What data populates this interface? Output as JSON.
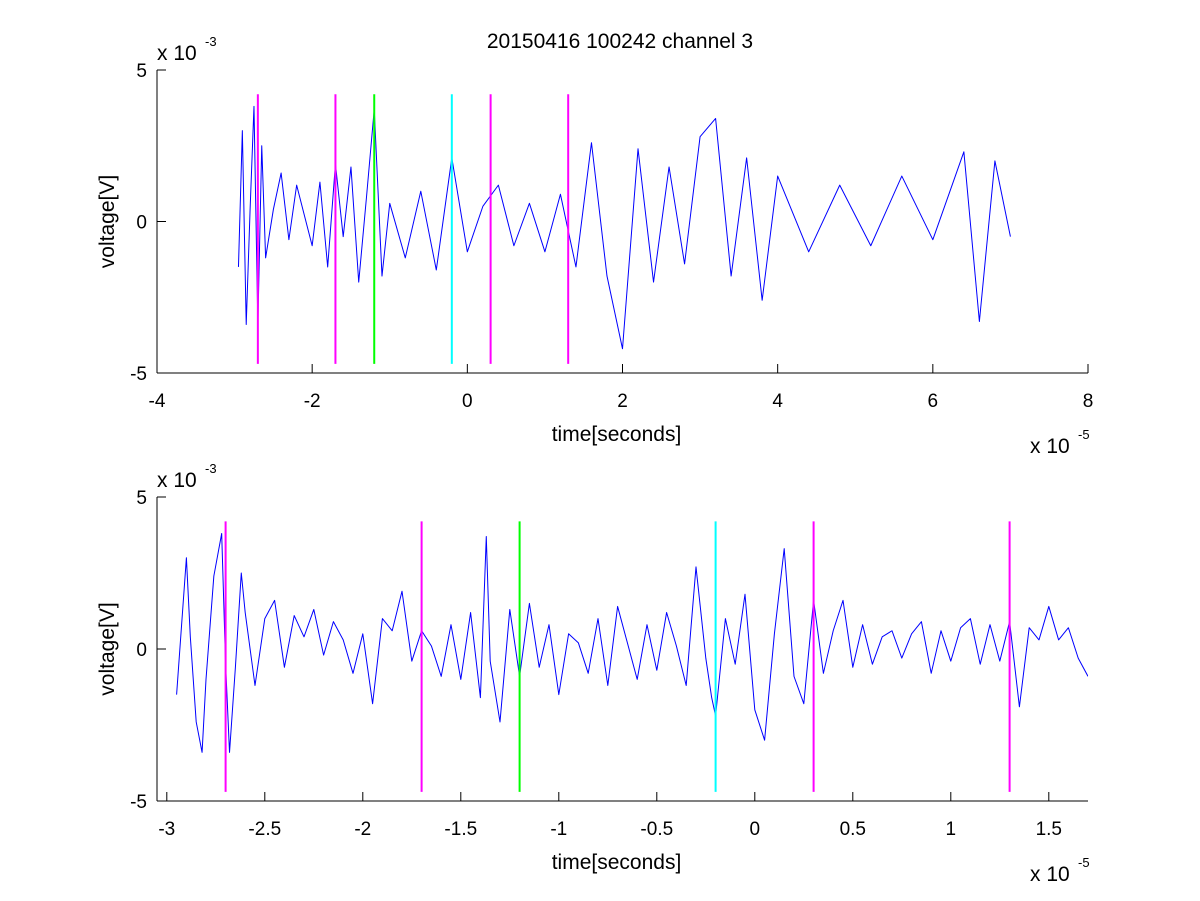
{
  "figure": {
    "title": "20150416 100242 channel 3"
  },
  "chart_data": [
    {
      "type": "line",
      "xlabel": "time[seconds]",
      "ylabel": "voltage[V]",
      "x_multiplier": "x 10",
      "x_exponent": "-5",
      "y_multiplier": "x 10",
      "y_exponent": "-3",
      "xlim": [
        -4,
        8
      ],
      "ylim": [
        -5,
        5
      ],
      "xticks": [
        -4,
        -2,
        0,
        2,
        4,
        6,
        8
      ],
      "xtick_labels": [
        "-4",
        "-2",
        "0",
        "2",
        "4",
        "6",
        "8"
      ],
      "yticks": [
        -5,
        0,
        5
      ],
      "ytick_labels": [
        "-5",
        "0",
        "5"
      ],
      "series": [
        {
          "color": "#0000ff",
          "x_range": [
            -2.95,
            7.0
          ],
          "x": [
            -2.95,
            -2.9,
            -2.85,
            -2.8,
            -2.75,
            -2.7,
            -2.65,
            -2.6,
            -2.5,
            -2.4,
            -2.3,
            -2.2,
            -2.1,
            -2.0,
            -1.9,
            -1.8,
            -1.7,
            -1.6,
            -1.5,
            -1.4,
            -1.3,
            -1.2,
            -1.1,
            -1.0,
            -0.8,
            -0.6,
            -0.4,
            -0.2,
            0.0,
            0.2,
            0.4,
            0.6,
            0.8,
            1.0,
            1.2,
            1.4,
            1.6,
            1.8,
            2.0,
            2.2,
            2.4,
            2.6,
            2.8,
            3.0,
            3.2,
            3.4,
            3.6,
            3.8,
            4.0,
            4.4,
            4.8,
            5.2,
            5.6,
            6.0,
            6.4,
            6.6,
            6.8,
            7.0
          ],
          "y": [
            -1.5,
            3.0,
            -3.4,
            0.4,
            3.8,
            -3.4,
            2.5,
            -1.2,
            0.4,
            1.6,
            -0.6,
            1.2,
            0.2,
            -0.8,
            1.3,
            -1.5,
            1.9,
            -0.5,
            1.8,
            -2.0,
            0.8,
            3.7,
            -1.8,
            0.6,
            -1.2,
            1.0,
            -1.6,
            2.1,
            -1.0,
            0.5,
            1.2,
            -0.8,
            0.6,
            -1.0,
            0.9,
            -1.5,
            2.6,
            -1.8,
            -4.2,
            2.4,
            -2.0,
            1.8,
            -1.4,
            2.8,
            3.4,
            -1.8,
            2.1,
            -2.6,
            1.5,
            -1.0,
            1.2,
            -0.8,
            1.5,
            -0.6,
            2.3,
            -3.3,
            2.0,
            -0.5
          ]
        }
      ],
      "vertical_markers": [
        {
          "x": -2.7,
          "color": "#ff00ff"
        },
        {
          "x": -1.7,
          "color": "#ff00ff"
        },
        {
          "x": -1.2,
          "color": "#00ff00"
        },
        {
          "x": -0.2,
          "color": "#00ffff"
        },
        {
          "x": 0.3,
          "color": "#ff00ff"
        },
        {
          "x": 1.3,
          "color": "#ff00ff"
        }
      ],
      "marker_y_range": [
        -4.7,
        4.2
      ]
    },
    {
      "type": "line",
      "xlabel": "time[seconds]",
      "ylabel": "voltage[V]",
      "x_multiplier": "x 10",
      "x_exponent": "-5",
      "y_multiplier": "x 10",
      "y_exponent": "-3",
      "xlim": [
        -3.05,
        1.7
      ],
      "ylim": [
        -5,
        5
      ],
      "xticks": [
        -3,
        -2.5,
        -2,
        -1.5,
        -1,
        -0.5,
        0,
        0.5,
        1,
        1.5
      ],
      "xtick_labels": [
        "-3",
        "-2.5",
        "-2",
        "-1.5",
        "-1",
        "-0.5",
        "0",
        "0.5",
        "1",
        "1.5"
      ],
      "yticks": [
        -5,
        0,
        5
      ],
      "ytick_labels": [
        "-5",
        "0",
        "5"
      ],
      "series": [
        {
          "color": "#0000ff",
          "x": [
            -2.95,
            -2.92,
            -2.9,
            -2.88,
            -2.85,
            -2.82,
            -2.8,
            -2.76,
            -2.72,
            -2.7,
            -2.68,
            -2.65,
            -2.62,
            -2.6,
            -2.55,
            -2.5,
            -2.45,
            -2.4,
            -2.35,
            -2.3,
            -2.25,
            -2.2,
            -2.15,
            -2.1,
            -2.05,
            -2.0,
            -1.95,
            -1.9,
            -1.85,
            -1.8,
            -1.75,
            -1.7,
            -1.65,
            -1.6,
            -1.55,
            -1.5,
            -1.45,
            -1.4,
            -1.37,
            -1.35,
            -1.3,
            -1.25,
            -1.2,
            -1.15,
            -1.1,
            -1.05,
            -1.0,
            -0.95,
            -0.9,
            -0.85,
            -0.8,
            -0.75,
            -0.7,
            -0.65,
            -0.6,
            -0.55,
            -0.5,
            -0.45,
            -0.4,
            -0.35,
            -0.3,
            -0.25,
            -0.22,
            -0.2,
            -0.15,
            -0.1,
            -0.05,
            0.0,
            0.05,
            0.1,
            0.15,
            0.2,
            0.25,
            0.3,
            0.35,
            0.4,
            0.45,
            0.5,
            0.55,
            0.6,
            0.65,
            0.7,
            0.75,
            0.8,
            0.85,
            0.9,
            0.95,
            1.0,
            1.05,
            1.1,
            1.15,
            1.2,
            1.25,
            1.3,
            1.35,
            1.4,
            1.45,
            1.5,
            1.55,
            1.6,
            1.65,
            1.7
          ],
          "y": [
            -1.5,
            1.2,
            3.0,
            0.4,
            -2.4,
            -3.4,
            -1.0,
            2.4,
            3.8,
            -0.5,
            -3.4,
            -0.6,
            2.5,
            1.2,
            -1.2,
            1.0,
            1.6,
            -0.6,
            1.1,
            0.4,
            1.3,
            -0.2,
            0.9,
            0.3,
            -0.8,
            0.5,
            -1.8,
            1.0,
            0.6,
            1.9,
            -0.4,
            0.6,
            0.1,
            -0.9,
            0.8,
            -1.0,
            1.2,
            -1.6,
            3.7,
            -0.4,
            -2.4,
            1.3,
            -0.9,
            1.5,
            -0.6,
            0.8,
            -1.5,
            0.5,
            0.2,
            -0.8,
            1.0,
            -1.2,
            1.4,
            0.2,
            -1.0,
            0.8,
            -0.7,
            1.2,
            0.1,
            -1.2,
            2.7,
            -0.3,
            -1.6,
            -2.2,
            1.0,
            -0.5,
            1.8,
            -2.0,
            -3.0,
            0.5,
            3.3,
            -0.9,
            -1.8,
            1.6,
            -0.8,
            0.6,
            1.6,
            -0.6,
            0.8,
            -0.5,
            0.4,
            0.6,
            -0.3,
            0.5,
            0.9,
            -0.8,
            0.6,
            -0.4,
            0.7,
            1.0,
            -0.5,
            0.8,
            -0.4,
            0.9,
            -1.9,
            0.7,
            0.3,
            1.4,
            0.3,
            0.7,
            -0.3,
            -0.9
          ]
        }
      ],
      "vertical_markers": [
        {
          "x": -2.7,
          "color": "#ff00ff"
        },
        {
          "x": -1.7,
          "color": "#ff00ff"
        },
        {
          "x": -1.2,
          "color": "#00ff00"
        },
        {
          "x": -0.2,
          "color": "#00ffff"
        },
        {
          "x": 0.3,
          "color": "#ff00ff"
        },
        {
          "x": 1.3,
          "color": "#ff00ff"
        }
      ],
      "marker_y_range": [
        -4.7,
        4.2
      ]
    }
  ]
}
